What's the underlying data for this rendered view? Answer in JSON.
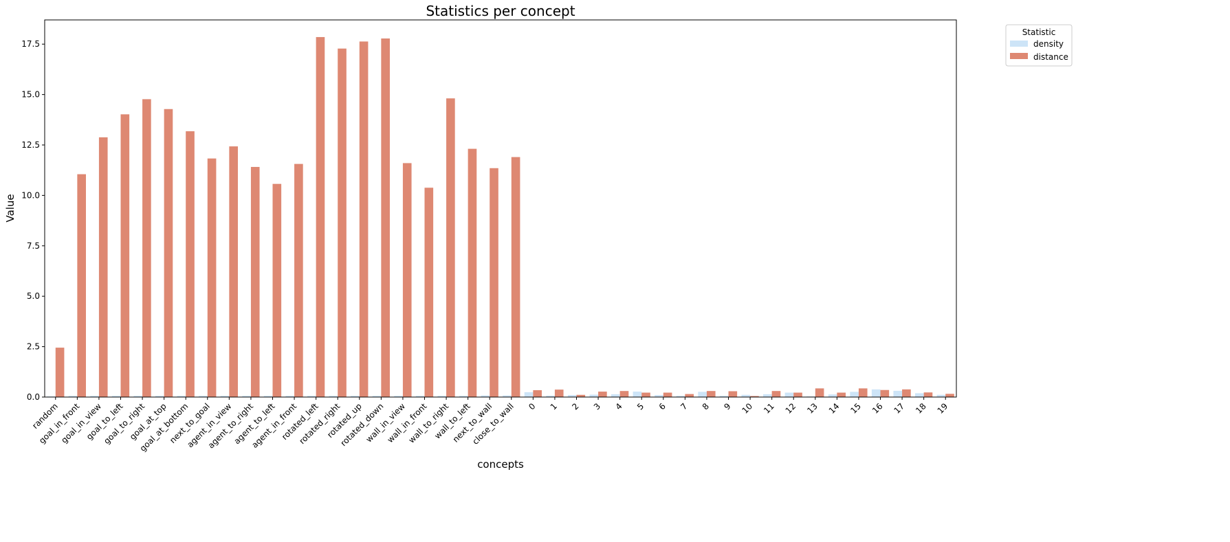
{
  "chart_data": {
    "type": "bar",
    "title": "Statistics per concept",
    "xlabel": "concepts",
    "ylabel": "Value",
    "ylim": [
      0,
      18.7
    ],
    "yticks": [
      "0.0",
      "2.5",
      "5.0",
      "7.5",
      "10.0",
      "12.5",
      "15.0",
      "17.5"
    ],
    "grid": false,
    "legend": {
      "title": "Statistic",
      "placement": "outside top-right"
    },
    "categories": [
      "random",
      "goal_in_front",
      "goal_in_view",
      "goal_to_left",
      "goal_to_right",
      "goal_at_top",
      "goal_at_bottom",
      "next_to_goal",
      "agent_in_view",
      "agent_to_right",
      "agent_to_left",
      "agent_in_front",
      "rotated_left",
      "rotated_right",
      "rotated_up",
      "rotated_down",
      "wall_in_view",
      "wall_in_front",
      "wall_to_right",
      "wall_to_left",
      "next_to_wall",
      "close_to_wall",
      "0",
      "1",
      "2",
      "3",
      "4",
      "5",
      "6",
      "7",
      "8",
      "9",
      "10",
      "11",
      "12",
      "13",
      "14",
      "15",
      "16",
      "17",
      "18",
      "19"
    ],
    "series": [
      {
        "name": "density",
        "color": "#cde4f7",
        "values": [
          0.03,
          0.06,
          0.06,
          0.06,
          0.06,
          0.06,
          0.06,
          0.06,
          0.06,
          0.06,
          0.06,
          0.06,
          0.06,
          0.06,
          0.06,
          0.06,
          0.06,
          0.06,
          0.06,
          0.06,
          0.08,
          0.08,
          0.24,
          0.07,
          0.1,
          0.12,
          0.14,
          0.27,
          0.1,
          0.06,
          0.26,
          0.06,
          0.11,
          0.14,
          0.22,
          0.03,
          0.13,
          0.26,
          0.38,
          0.31,
          0.19,
          0.11
        ]
      },
      {
        "name": "distance",
        "color": "#de8872",
        "values": [
          2.45,
          11.05,
          12.88,
          14.02,
          14.77,
          14.28,
          13.18,
          11.83,
          12.43,
          11.41,
          10.57,
          11.56,
          17.85,
          17.28,
          17.63,
          17.78,
          11.6,
          10.38,
          14.81,
          12.31,
          11.35,
          11.9,
          0.34,
          0.37,
          0.11,
          0.27,
          0.3,
          0.22,
          0.22,
          0.15,
          0.3,
          0.29,
          0.05,
          0.3,
          0.22,
          0.43,
          0.22,
          0.43,
          0.35,
          0.38,
          0.23,
          0.16
        ]
      }
    ]
  }
}
